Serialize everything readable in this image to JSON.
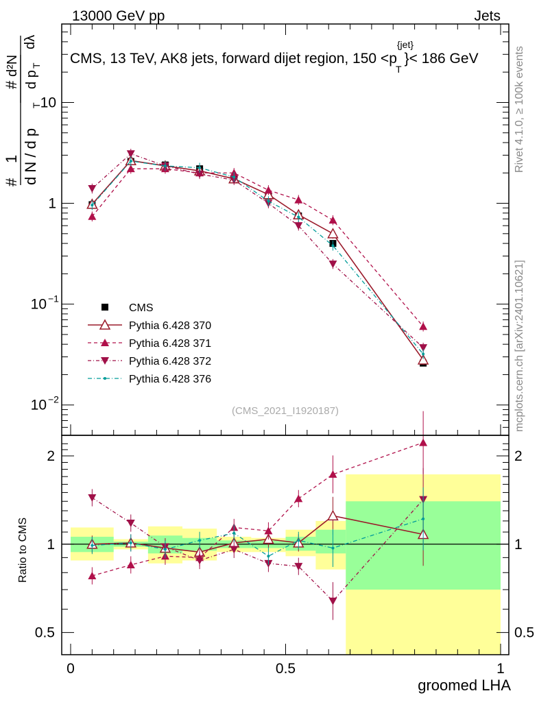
{
  "header": {
    "left": "13000 GeV pp",
    "right": "Jets"
  },
  "title": {
    "prefix": "CMS, 13 TeV, AK8 jets, forward dijet region, 150 <p",
    "sup": "{jet}",
    "sub": "T",
    "suffix": "}< 186 GeV"
  },
  "side_labels": {
    "rivet": "Rivet 4.1.0, ≥ 100k events",
    "site": "mcplots.cern.ch [arXiv:2401.10621]"
  },
  "watermark": "(CMS_2021_I1920187)",
  "colors": {
    "data": "#000000",
    "p370": "#9a1a2a",
    "p371": "#b0104a",
    "p372": "#a01048",
    "p376": "#009c99",
    "band_green": "#99ff99",
    "band_yellow": "#ffff99"
  },
  "chart_data": [
    {
      "type": "scatter",
      "panel": "main",
      "title": "CMS, 13 TeV, AK8 jets, forward dijet region, 150 < pT(jet) < 186 GeV",
      "xlabel": "groomed LHA",
      "ylabel_parts": {
        "hash1": "#",
        "one": "1",
        "denom": "d N / d p",
        "denom_sub": "T",
        "hash2": "#",
        "num": "d²N",
        "dp": "d p",
        "dp_sub": "T",
        "dlambda": "dλ"
      },
      "yscale": "log",
      "xlim": [
        0,
        1
      ],
      "ylim": [
        0.005,
        60
      ],
      "y_ticks": [
        {
          "value": 0.01,
          "base": "10",
          "exp": "−2"
        },
        {
          "value": 0.1,
          "base": "10",
          "exp": "−1"
        },
        {
          "value": 1,
          "base": "1",
          "exp": ""
        },
        {
          "value": 10,
          "base": "10",
          "exp": ""
        }
      ],
      "x_ticks": [
        {
          "value": 0,
          "label": "0"
        },
        {
          "value": 0.5,
          "label": "0.5"
        },
        {
          "value": 1,
          "label": "1"
        }
      ],
      "x_centers": [
        0.05,
        0.14,
        0.22,
        0.3,
        0.38,
        0.46,
        0.53,
        0.61,
        0.82
      ],
      "bin_edges": [
        0.0,
        0.1,
        0.18,
        0.26,
        0.34,
        0.42,
        0.5,
        0.57,
        0.64,
        1.0
      ],
      "series": [
        {
          "name": "CMS",
          "style": "data",
          "values": [
            0.97,
            2.6,
            2.4,
            2.2,
            1.75,
            1.18,
            0.75,
            0.4,
            0.026
          ]
        },
        {
          "name": "Pythia 6.428 370",
          "style": "open-triangle",
          "values": [
            0.98,
            2.65,
            2.35,
            2.1,
            1.75,
            1.22,
            0.77,
            0.5,
            0.028
          ]
        },
        {
          "name": "Pythia 6.428 371",
          "style": "triangle-up",
          "values": [
            0.74,
            2.2,
            2.2,
            2.0,
            2.0,
            1.35,
            1.08,
            0.68,
            0.06
          ]
        },
        {
          "name": "Pythia 6.428 372",
          "style": "triangle-down",
          "values": [
            1.4,
            3.1,
            2.35,
            1.95,
            1.7,
            1.0,
            0.6,
            0.25,
            0.037
          ]
        },
        {
          "name": "Pythia 6.428 376",
          "style": "dot",
          "values": [
            0.96,
            2.62,
            2.35,
            2.25,
            1.82,
            1.05,
            0.73,
            0.38,
            0.032
          ]
        }
      ]
    },
    {
      "type": "scatter",
      "panel": "ratio",
      "ylabel": "Ratio to CMS",
      "yscale": "log",
      "ylim": [
        0.42,
        2.35
      ],
      "y_ticks": [
        {
          "value": 0.5,
          "label": "0.5"
        },
        {
          "value": 1,
          "label": "1"
        },
        {
          "value": 2,
          "label": "2"
        }
      ],
      "bands": {
        "green": [
          [
            0.94,
            1.06
          ],
          [
            0.98,
            1.02
          ],
          [
            0.93,
            1.07
          ],
          [
            0.95,
            1.05
          ],
          [
            0.97,
            1.03
          ],
          [
            0.97,
            1.03
          ],
          [
            0.95,
            1.06
          ],
          [
            0.93,
            1.12
          ],
          [
            0.7,
            1.4
          ]
        ],
        "yellow": [
          [
            0.88,
            1.14
          ],
          [
            0.96,
            1.04
          ],
          [
            0.86,
            1.15
          ],
          [
            0.88,
            1.13
          ],
          [
            0.94,
            1.06
          ],
          [
            0.94,
            1.05
          ],
          [
            0.91,
            1.12
          ],
          [
            0.82,
            1.2
          ],
          [
            0.42,
            1.73
          ]
        ]
      },
      "series": [
        {
          "name": "Pythia 6.428 370",
          "values": [
            1.0,
            1.01,
            0.97,
            0.94,
            1.01,
            1.04,
            1.01,
            1.25,
            1.08
          ]
        },
        {
          "name": "Pythia 6.428 371",
          "values": [
            0.78,
            0.85,
            0.91,
            0.9,
            1.14,
            1.11,
            1.43,
            1.73,
            2.22
          ]
        },
        {
          "name": "Pythia 6.428 372",
          "values": [
            1.44,
            1.18,
            0.98,
            0.88,
            0.96,
            0.86,
            0.84,
            0.64,
            1.42
          ]
        },
        {
          "name": "Pythia 6.428 376",
          "values": [
            0.99,
            1.01,
            0.96,
            1.03,
            1.09,
            0.91,
            1.03,
            0.97,
            1.22
          ]
        }
      ]
    }
  ]
}
